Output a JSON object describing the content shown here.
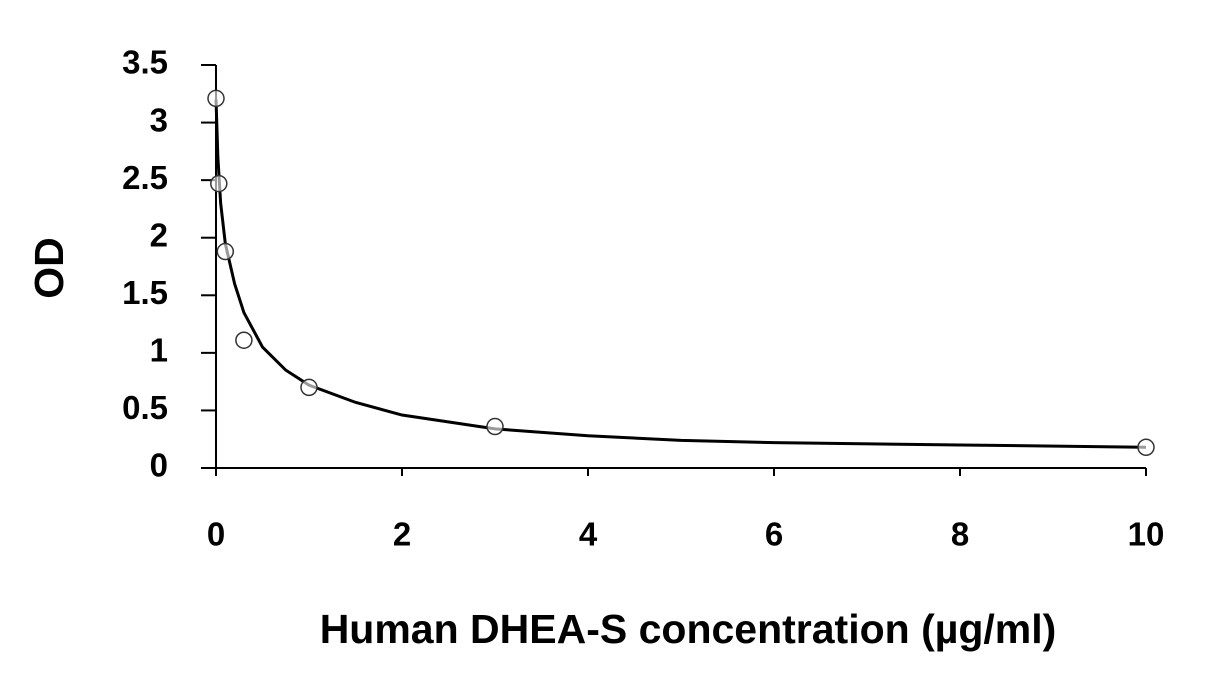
{
  "chart_data": {
    "type": "scatter",
    "x_label": "Human DHEA-S concentration (µg/ml)",
    "y_label": "OD",
    "x": [
      0,
      0.03,
      0.1,
      0.3,
      1,
      3,
      10
    ],
    "values": [
      3.21,
      2.47,
      1.88,
      1.11,
      0.7,
      0.36,
      0.18
    ],
    "curve": {
      "x": [
        0,
        0.02,
        0.05,
        0.1,
        0.2,
        0.3,
        0.5,
        0.75,
        1,
        1.5,
        2,
        3,
        4,
        5,
        6,
        8,
        10
      ],
      "values": [
        3.2,
        2.7,
        2.3,
        1.95,
        1.6,
        1.35,
        1.05,
        0.85,
        0.72,
        0.57,
        0.46,
        0.34,
        0.28,
        0.24,
        0.22,
        0.2,
        0.18
      ]
    },
    "color": "#000000",
    "xlim": [
      0,
      10
    ],
    "xticks": [
      0,
      2,
      4,
      6,
      8,
      10
    ],
    "ylim": [
      0,
      3.5
    ],
    "yticks": [
      0,
      0.5,
      1,
      1.5,
      2,
      2.5,
      3,
      3.5
    ],
    "grid": false
  }
}
